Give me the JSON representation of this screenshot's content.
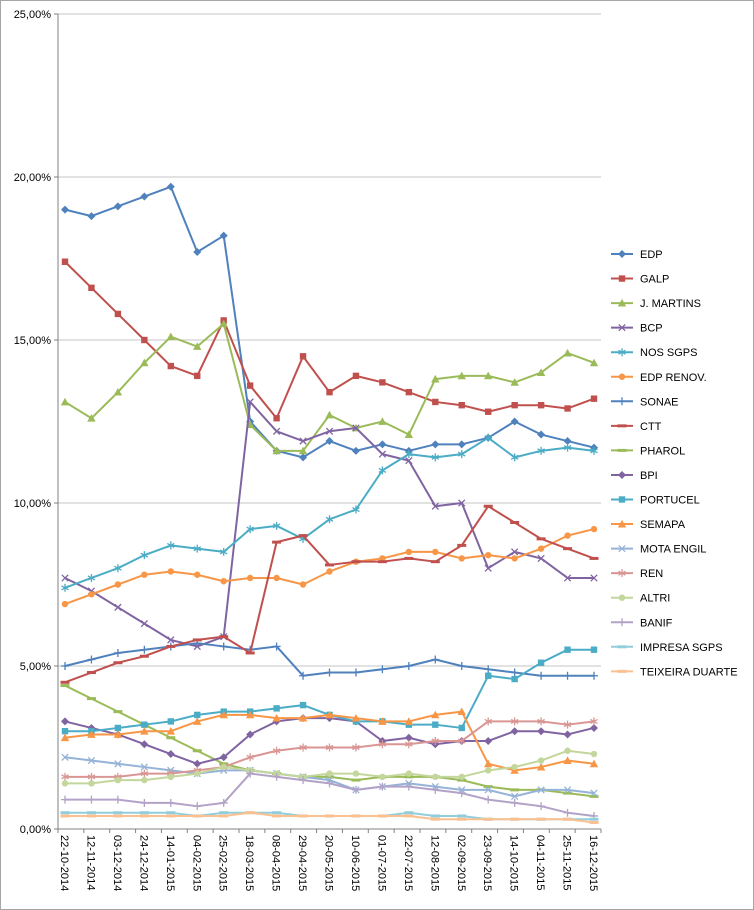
{
  "chart_data": {
    "type": "line",
    "title": "",
    "xlabel": "",
    "ylabel": "",
    "ylim": [
      0,
      25
    ],
    "y_ticks": [
      0,
      5,
      10,
      15,
      20,
      25
    ],
    "y_tick_labels": [
      "0,00%",
      "5,00%",
      "10,00%",
      "15,00%",
      "20,00%",
      "25,00%"
    ],
    "grid": true,
    "grid_color": "#C6C6C6",
    "axis_color": "#808080",
    "legend_position": "right",
    "categories": [
      "22-10-2014",
      "12-11-2014",
      "03-12-2014",
      "24-12-2014",
      "14-01-2015",
      "04-02-2015",
      "25-02-2015",
      "18-03-2015",
      "08-04-2015",
      "29-04-2015",
      "20-05-2015",
      "10-06-2015",
      "01-07-2015",
      "22-07-2015",
      "12-08-2015",
      "02-09-2015",
      "23-09-2015",
      "14-10-2015",
      "04-11-2015",
      "25-11-2015",
      "16-12-2015"
    ],
    "series": [
      {
        "name": "EDP",
        "color": "#4F81BD",
        "marker": "diamond",
        "values": [
          19.0,
          18.8,
          19.1,
          19.4,
          19.7,
          17.7,
          18.2,
          12.5,
          11.6,
          11.4,
          11.9,
          11.6,
          11.8,
          11.6,
          11.8,
          11.8,
          12.0,
          12.5,
          12.1,
          11.9,
          11.7
        ]
      },
      {
        "name": "GALP",
        "color": "#C0504D",
        "marker": "square",
        "values": [
          17.4,
          16.6,
          15.8,
          15.0,
          14.2,
          13.9,
          15.6,
          13.6,
          12.6,
          14.5,
          13.4,
          13.9,
          13.7,
          13.4,
          13.1,
          13.0,
          12.8,
          13.0,
          13.0,
          12.9,
          13.2
        ]
      },
      {
        "name": "J. MARTINS",
        "color": "#9BBB59",
        "marker": "triangle",
        "values": [
          13.1,
          12.6,
          13.4,
          14.3,
          15.1,
          14.8,
          15.5,
          12.4,
          11.6,
          11.6,
          12.7,
          12.3,
          12.5,
          12.1,
          13.8,
          13.9,
          13.9,
          13.7,
          14.0,
          14.6,
          14.3
        ]
      },
      {
        "name": "BCP",
        "color": "#8064A2",
        "marker": "x",
        "values": [
          7.7,
          7.3,
          6.8,
          6.3,
          5.8,
          5.6,
          5.9,
          13.1,
          12.2,
          11.9,
          12.2,
          12.3,
          11.5,
          11.3,
          9.9,
          10.0,
          8.0,
          8.5,
          8.3,
          7.7,
          7.7
        ]
      },
      {
        "name": "NOS SGPS",
        "color": "#4BACC6",
        "marker": "asterisk",
        "values": [
          7.4,
          7.7,
          8.0,
          8.4,
          8.7,
          8.6,
          8.5,
          9.2,
          9.3,
          8.9,
          9.5,
          9.8,
          11.0,
          11.5,
          11.4,
          11.5,
          12.0,
          11.4,
          11.6,
          11.7,
          11.6
        ]
      },
      {
        "name": "EDP RENOV.",
        "color": "#F79646",
        "marker": "circle",
        "values": [
          6.9,
          7.2,
          7.5,
          7.8,
          7.9,
          7.8,
          7.6,
          7.7,
          7.7,
          7.5,
          7.9,
          8.2,
          8.3,
          8.5,
          8.5,
          8.3,
          8.4,
          8.3,
          8.6,
          9.0,
          9.2
        ]
      },
      {
        "name": "SONAE",
        "color": "#4F81BD",
        "marker": "plus",
        "values": [
          5.0,
          5.2,
          5.4,
          5.5,
          5.6,
          5.7,
          5.6,
          5.5,
          5.6,
          4.7,
          4.8,
          4.8,
          4.9,
          5.0,
          5.2,
          5.0,
          4.9,
          4.8,
          4.7,
          4.7,
          4.7
        ]
      },
      {
        "name": "CTT",
        "color": "#C0504D",
        "marker": "dash",
        "values": [
          4.5,
          4.8,
          5.1,
          5.3,
          5.6,
          5.8,
          5.9,
          5.4,
          8.8,
          9.0,
          8.1,
          8.2,
          8.2,
          8.3,
          8.2,
          8.7,
          9.9,
          9.4,
          8.9,
          8.6,
          8.3
        ]
      },
      {
        "name": "PHAROL",
        "color": "#9BBB59",
        "marker": "dash",
        "values": [
          4.4,
          4.0,
          3.6,
          3.2,
          2.8,
          2.4,
          2.0,
          1.8,
          1.7,
          1.6,
          1.6,
          1.5,
          1.6,
          1.6,
          1.6,
          1.5,
          1.3,
          1.2,
          1.2,
          1.1,
          1.0
        ]
      },
      {
        "name": "BPI",
        "color": "#8064A2",
        "marker": "diamond",
        "values": [
          3.3,
          3.1,
          2.9,
          2.6,
          2.3,
          2.0,
          2.2,
          2.9,
          3.3,
          3.4,
          3.4,
          3.3,
          2.7,
          2.8,
          2.6,
          2.7,
          2.7,
          3.0,
          3.0,
          2.9,
          3.1
        ]
      },
      {
        "name": "PORTUCEL",
        "color": "#4BACC6",
        "marker": "square",
        "values": [
          3.0,
          3.0,
          3.1,
          3.2,
          3.3,
          3.5,
          3.6,
          3.6,
          3.7,
          3.8,
          3.5,
          3.3,
          3.3,
          3.2,
          3.2,
          3.1,
          4.7,
          4.6,
          5.1,
          5.5,
          5.5
        ]
      },
      {
        "name": "SEMAPA",
        "color": "#F79646",
        "marker": "triangle",
        "values": [
          2.8,
          2.9,
          2.9,
          3.0,
          3.0,
          3.3,
          3.5,
          3.5,
          3.4,
          3.4,
          3.5,
          3.4,
          3.3,
          3.3,
          3.5,
          3.6,
          2.0,
          1.8,
          1.9,
          2.1,
          2.0
        ]
      },
      {
        "name": "MOTA ENGIL",
        "color": "#95B3D7",
        "marker": "x",
        "values": [
          2.2,
          2.1,
          2.0,
          1.9,
          1.8,
          1.7,
          1.8,
          1.8,
          1.7,
          1.6,
          1.5,
          1.2,
          1.3,
          1.4,
          1.3,
          1.2,
          1.2,
          1.0,
          1.2,
          1.2,
          1.1
        ]
      },
      {
        "name": "REN",
        "color": "#D99694",
        "marker": "asterisk",
        "values": [
          1.6,
          1.6,
          1.6,
          1.7,
          1.7,
          1.8,
          1.9,
          2.2,
          2.4,
          2.5,
          2.5,
          2.5,
          2.6,
          2.6,
          2.7,
          2.7,
          3.3,
          3.3,
          3.3,
          3.2,
          3.3
        ]
      },
      {
        "name": "ALTRI",
        "color": "#C3D69B",
        "marker": "circle",
        "values": [
          1.4,
          1.4,
          1.5,
          1.5,
          1.6,
          1.7,
          1.9,
          1.8,
          1.7,
          1.6,
          1.7,
          1.7,
          1.6,
          1.7,
          1.6,
          1.6,
          1.8,
          1.9,
          2.1,
          2.4,
          2.3
        ]
      },
      {
        "name": "BANIF",
        "color": "#B3A2C7",
        "marker": "plus",
        "values": [
          0.9,
          0.9,
          0.9,
          0.8,
          0.8,
          0.7,
          0.8,
          1.7,
          1.6,
          1.5,
          1.4,
          1.2,
          1.3,
          1.3,
          1.2,
          1.1,
          0.9,
          0.8,
          0.7,
          0.5,
          0.4
        ]
      },
      {
        "name": "IMPRESA SGPS",
        "color": "#92CDDC",
        "marker": "dash",
        "values": [
          0.5,
          0.5,
          0.5,
          0.5,
          0.5,
          0.4,
          0.5,
          0.5,
          0.5,
          0.4,
          0.4,
          0.4,
          0.4,
          0.5,
          0.4,
          0.4,
          0.3,
          0.3,
          0.3,
          0.3,
          0.3
        ]
      },
      {
        "name": "TEIXEIRA DUARTE",
        "color": "#FAC090",
        "marker": "dash",
        "values": [
          0.4,
          0.4,
          0.4,
          0.4,
          0.4,
          0.4,
          0.4,
          0.5,
          0.4,
          0.4,
          0.4,
          0.4,
          0.4,
          0.4,
          0.3,
          0.3,
          0.3,
          0.3,
          0.3,
          0.3,
          0.2
        ]
      }
    ]
  }
}
